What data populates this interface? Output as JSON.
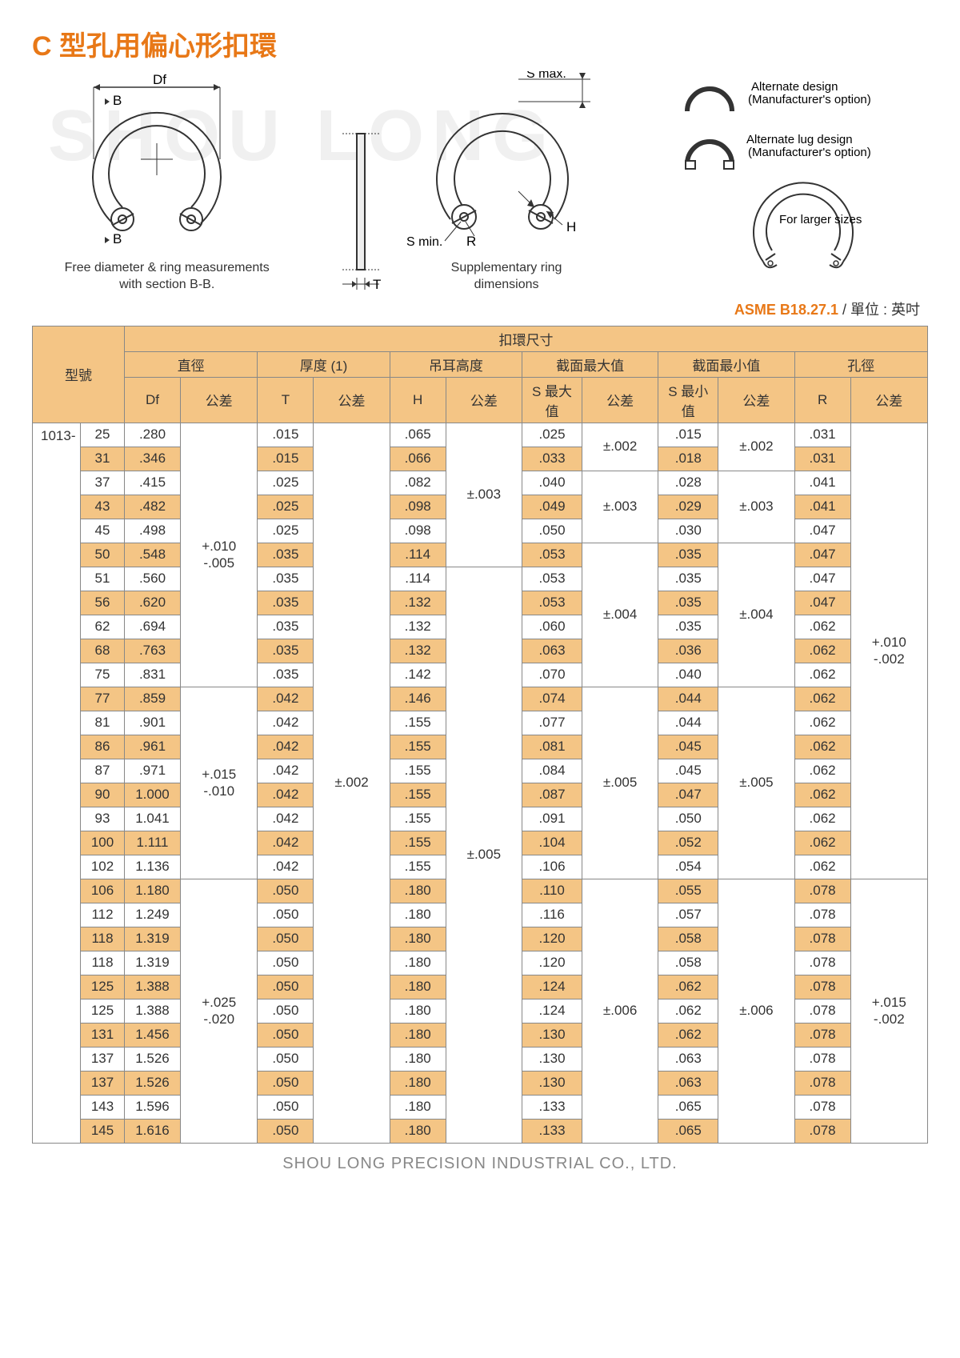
{
  "title": "C 型孔用偏心形扣環",
  "watermark": "SHOU LONG",
  "diagrams": {
    "left": {
      "Df": "Df",
      "B1": "B",
      "B2": "B",
      "caption": "Free diameter & ring measurements\nwith section B-B."
    },
    "center_side": {
      "T": "T"
    },
    "center": {
      "Smax": "S max.",
      "Smin": "S min.",
      "R": "R",
      "H": "H",
      "caption": "Supplementary ring\ndimensions"
    },
    "right": {
      "alt1": "Alternate design\n(Manufacturer's option)",
      "alt2": "Alternate lug design\n(Manufacturer's option)",
      "larger": "For larger sizes"
    }
  },
  "spec": {
    "standard": "ASME B18.27.1",
    "unit": " / 單位 : 英吋"
  },
  "header": {
    "model": "型號",
    "ring_dims": "扣環尺寸",
    "groups": [
      "直徑",
      "厚度 (1)",
      "吊耳高度",
      "截面最大值",
      "截面最小值",
      "孔徑"
    ],
    "sub": [
      "Df",
      "公差",
      "T",
      "公差",
      "H",
      "公差",
      "S 最大值",
      "公差",
      "S 最小值",
      "公差",
      "R",
      "公差"
    ]
  },
  "series": "1013-",
  "rows": [
    {
      "n": "25",
      "Df": ".280",
      "T": ".015",
      "H": ".065",
      "Smax": ".025",
      "Smin": ".015",
      "R": ".031"
    },
    {
      "n": "31",
      "Df": ".346",
      "T": ".015",
      "H": ".066",
      "Smax": ".033",
      "Smin": ".018",
      "R": ".031"
    },
    {
      "n": "37",
      "Df": ".415",
      "T": ".025",
      "H": ".082",
      "Smax": ".040",
      "Smin": ".028",
      "R": ".041"
    },
    {
      "n": "43",
      "Df": ".482",
      "T": ".025",
      "H": ".098",
      "Smax": ".049",
      "Smin": ".029",
      "R": ".041"
    },
    {
      "n": "45",
      "Df": ".498",
      "T": ".025",
      "H": ".098",
      "Smax": ".050",
      "Smin": ".030",
      "R": ".047"
    },
    {
      "n": "50",
      "Df": ".548",
      "T": ".035",
      "H": ".114",
      "Smax": ".053",
      "Smin": ".035",
      "R": ".047"
    },
    {
      "n": "51",
      "Df": ".560",
      "T": ".035",
      "H": ".114",
      "Smax": ".053",
      "Smin": ".035",
      "R": ".047"
    },
    {
      "n": "56",
      "Df": ".620",
      "T": ".035",
      "H": ".132",
      "Smax": ".053",
      "Smin": ".035",
      "R": ".047"
    },
    {
      "n": "62",
      "Df": ".694",
      "T": ".035",
      "H": ".132",
      "Smax": ".060",
      "Smin": ".035",
      "R": ".062"
    },
    {
      "n": "68",
      "Df": ".763",
      "T": ".035",
      "H": ".132",
      "Smax": ".063",
      "Smin": ".036",
      "R": ".062"
    },
    {
      "n": "75",
      "Df": ".831",
      "T": ".035",
      "H": ".142",
      "Smax": ".070",
      "Smin": ".040",
      "R": ".062"
    },
    {
      "n": "77",
      "Df": ".859",
      "T": ".042",
      "H": ".146",
      "Smax": ".074",
      "Smin": ".044",
      "R": ".062"
    },
    {
      "n": "81",
      "Df": ".901",
      "T": ".042",
      "H": ".155",
      "Smax": ".077",
      "Smin": ".044",
      "R": ".062"
    },
    {
      "n": "86",
      "Df": ".961",
      "T": ".042",
      "H": ".155",
      "Smax": ".081",
      "Smin": ".045",
      "R": ".062"
    },
    {
      "n": "87",
      "Df": ".971",
      "T": ".042",
      "H": ".155",
      "Smax": ".084",
      "Smin": ".045",
      "R": ".062"
    },
    {
      "n": "90",
      "Df": "1.000",
      "T": ".042",
      "H": ".155",
      "Smax": ".087",
      "Smin": ".047",
      "R": ".062"
    },
    {
      "n": "93",
      "Df": "1.041",
      "T": ".042",
      "H": ".155",
      "Smax": ".091",
      "Smin": ".050",
      "R": ".062"
    },
    {
      "n": "100",
      "Df": "1.111",
      "T": ".042",
      "H": ".155",
      "Smax": ".104",
      "Smin": ".052",
      "R": ".062"
    },
    {
      "n": "102",
      "Df": "1.136",
      "T": ".042",
      "H": ".155",
      "Smax": ".106",
      "Smin": ".054",
      "R": ".062"
    },
    {
      "n": "106",
      "Df": "1.180",
      "T": ".050",
      "H": ".180",
      "Smax": ".110",
      "Smin": ".055",
      "R": ".078"
    },
    {
      "n": "112",
      "Df": "1.249",
      "T": ".050",
      "H": ".180",
      "Smax": ".116",
      "Smin": ".057",
      "R": ".078"
    },
    {
      "n": "118",
      "Df": "1.319",
      "T": ".050",
      "H": ".180",
      "Smax": ".120",
      "Smin": ".058",
      "R": ".078"
    },
    {
      "n": "118",
      "Df": "1.319",
      "T": ".050",
      "H": ".180",
      "Smax": ".120",
      "Smin": ".058",
      "R": ".078"
    },
    {
      "n": "125",
      "Df": "1.388",
      "T": ".050",
      "H": ".180",
      "Smax": ".124",
      "Smin": ".062",
      "R": ".078"
    },
    {
      "n": "125",
      "Df": "1.388",
      "T": ".050",
      "H": ".180",
      "Smax": ".124",
      "Smin": ".062",
      "R": ".078"
    },
    {
      "n": "131",
      "Df": "1.456",
      "T": ".050",
      "H": ".180",
      "Smax": ".130",
      "Smin": ".062",
      "R": ".078"
    },
    {
      "n": "137",
      "Df": "1.526",
      "T": ".050",
      "H": ".180",
      "Smax": ".130",
      "Smin": ".063",
      "R": ".078"
    },
    {
      "n": "137",
      "Df": "1.526",
      "T": ".050",
      "H": ".180",
      "Smax": ".130",
      "Smin": ".063",
      "R": ".078"
    },
    {
      "n": "143",
      "Df": "1.596",
      "T": ".050",
      "H": ".180",
      "Smax": ".133",
      "Smin": ".065",
      "R": ".078"
    },
    {
      "n": "145",
      "Df": "1.616",
      "T": ".050",
      "H": ".180",
      "Smax": ".133",
      "Smin": ".065",
      "R": ".078"
    }
  ],
  "tolerances": {
    "Df": [
      {
        "start": 0,
        "span": 11,
        "text": "+.010\n-.005"
      },
      {
        "start": 11,
        "span": 8,
        "text": "+.015\n-.010"
      },
      {
        "start": 19,
        "span": 11,
        "text": "+.025\n-.020"
      }
    ],
    "T": [
      {
        "start": 0,
        "span": 30,
        "text": "±.002"
      }
    ],
    "H": [
      {
        "start": 0,
        "span": 6,
        "text": "±.003"
      },
      {
        "start": 6,
        "span": 24,
        "text": "±.005"
      }
    ],
    "Smax": [
      {
        "start": 0,
        "span": 2,
        "text": "±.002"
      },
      {
        "start": 2,
        "span": 3,
        "text": "±.003"
      },
      {
        "start": 5,
        "span": 6,
        "text": "±.004"
      },
      {
        "start": 11,
        "span": 8,
        "text": "±.005"
      },
      {
        "start": 19,
        "span": 11,
        "text": "±.006"
      }
    ],
    "Smin": [
      {
        "start": 0,
        "span": 2,
        "text": "±.002"
      },
      {
        "start": 2,
        "span": 3,
        "text": "±.003"
      },
      {
        "start": 5,
        "span": 6,
        "text": "±.004"
      },
      {
        "start": 11,
        "span": 8,
        "text": "±.005"
      },
      {
        "start": 19,
        "span": 11,
        "text": "±.006"
      }
    ],
    "R": [
      {
        "start": 0,
        "span": 19,
        "text": "+.010\n-.002"
      },
      {
        "start": 19,
        "span": 11,
        "text": "+.015\n-.002"
      }
    ]
  },
  "colors": {
    "header_bg": "#f4c585",
    "alt_bg": "#f4c585",
    "border": "#888888",
    "title": "#e87817",
    "text": "#333333",
    "footer": "#888888"
  },
  "footer": "SHOU LONG PRECISION INDUSTRIAL CO., LTD."
}
